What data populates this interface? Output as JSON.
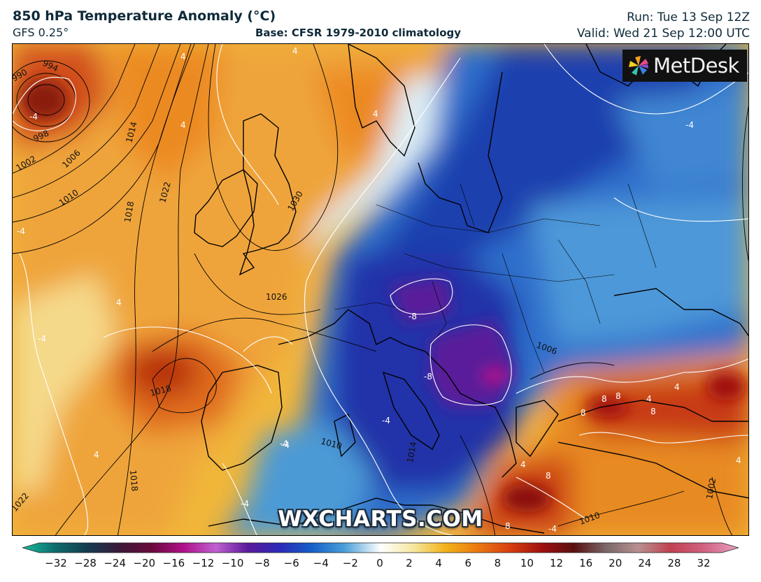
{
  "header": {
    "title": "850 hPa Temperature Anomaly (°C)",
    "model": "GFS 0.25°",
    "base": "Base: CFSR 1979-2010 climatology",
    "run": "Run: Tue 13 Sep 12Z",
    "valid": "Valid: Wed 21 Sep 12:00 UTC"
  },
  "brand": {
    "name": "MetDesk",
    "icon": "metdesk-pinwheel-icon"
  },
  "watermark": "WXCHARTS.COM",
  "map": {
    "isobar_labels": [
      "994",
      "990",
      "998",
      "1002",
      "1006",
      "1010",
      "1014",
      "1018",
      "1022",
      "1030",
      "1026",
      "1018",
      "1006",
      "1018",
      "1022",
      "1010",
      "1002",
      "1010",
      "1014"
    ],
    "anomaly_labels": [
      "-4",
      "4",
      "4",
      "4",
      "-4",
      "-4",
      "4",
      "-4",
      "-8",
      "-8",
      "-4",
      "-4",
      "4",
      "8",
      "8",
      "4",
      "8",
      "8",
      "4",
      "-4",
      "4",
      "8",
      "-4",
      "4",
      "-4",
      "4",
      "8"
    ]
  },
  "colorbar": {
    "ticks": [
      "−32",
      "−28",
      "−24",
      "−20",
      "−16",
      "−12",
      "−10",
      "−8",
      "−6",
      "−4",
      "−2",
      "0",
      "2",
      "4",
      "6",
      "8",
      "10",
      "12",
      "16",
      "20",
      "24",
      "28",
      "32"
    ],
    "colors": [
      "#1abc9c",
      "#0e6e6e",
      "#143c4f",
      "#3a1a3a",
      "#6a0a3a",
      "#b0108a",
      "#c060d0",
      "#5a1a9a",
      "#2a2ab8",
      "#1560c8",
      "#4aa0d8",
      "#d6ecf6",
      "#f6e8a0",
      "#f2b31a",
      "#ea7a10",
      "#d84010",
      "#a01010",
      "#5a1010",
      "#7a6868",
      "#b89090",
      "#c04050",
      "#d06080",
      "#e8a0c0"
    ]
  }
}
